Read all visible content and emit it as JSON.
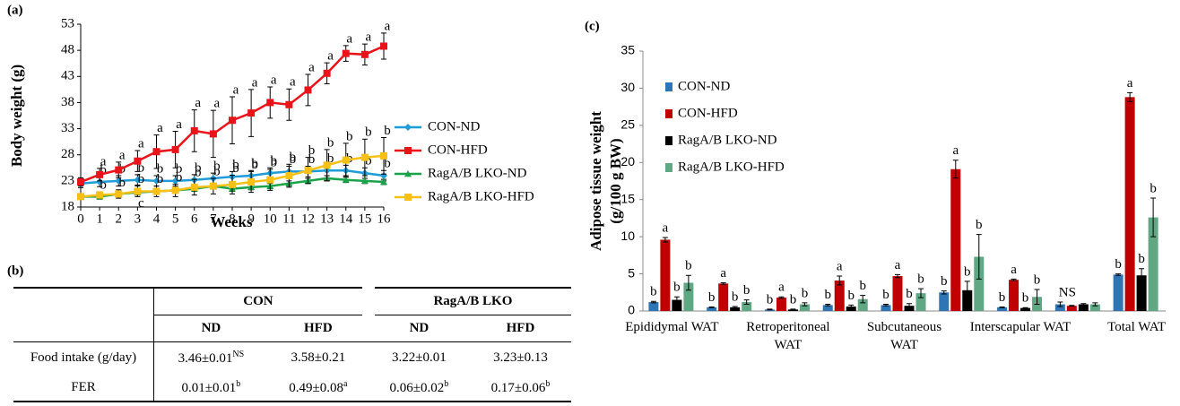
{
  "chart_data": [
    {
      "type": "line",
      "panel": "(a)",
      "ylabel": "Body weight (g)",
      "xlabel": "Weeks",
      "x": [
        0,
        1,
        2,
        3,
        4,
        5,
        6,
        7,
        8,
        9,
        10,
        11,
        12,
        13,
        14,
        15,
        16
      ],
      "xlim": [
        0,
        16
      ],
      "xticks": [
        0,
        1,
        2,
        3,
        4,
        5,
        6,
        7,
        8,
        9,
        10,
        11,
        12,
        13,
        14,
        15,
        16
      ],
      "ylim": [
        18,
        53
      ],
      "yticks": [
        18,
        23,
        28,
        33,
        38,
        43,
        48,
        53
      ],
      "series": [
        {
          "name": "CON-ND",
          "color": "#1f9bd7",
          "marker": "diamond",
          "values": [
            22.5,
            22.8,
            23,
            23.2,
            23,
            23,
            23.2,
            23.5,
            23.8,
            24,
            24.5,
            24.8,
            24.8,
            25,
            25,
            24.5,
            24
          ],
          "errors": [
            0.8,
            0.9,
            1,
            1,
            1,
            1,
            1,
            1,
            1,
            1,
            1,
            1,
            1,
            1,
            1,
            1,
            1
          ],
          "letters": [
            null,
            "b",
            "b",
            "b",
            "b",
            "b",
            "b",
            "b",
            "b",
            "b",
            "b",
            "b",
            "b",
            "b",
            "b",
            "b",
            "b"
          ]
        },
        {
          "name": "CON-HFD",
          "color": "#e8141a",
          "marker": "square",
          "values": [
            22.8,
            24.2,
            25.1,
            26.8,
            28.6,
            29,
            32.6,
            32,
            34.6,
            36,
            38,
            37.6,
            40.4,
            43.6,
            47.4,
            47.2,
            48.8
          ],
          "errors": [
            0.8,
            1.2,
            1.5,
            2,
            3.2,
            3.5,
            4,
            4.5,
            4.5,
            4.5,
            3,
            3,
            3,
            2,
            1.5,
            2,
            2.5
          ],
          "letters": [
            null,
            "a",
            "a",
            "a",
            "a",
            "a",
            "a",
            "a",
            "a",
            "a",
            "a",
            "a",
            "a",
            "a",
            "a",
            "a",
            "a"
          ]
        },
        {
          "name": "RagA/B LKO-ND",
          "color": "#1aa34a",
          "marker": "triangle",
          "values": [
            20,
            20,
            20.5,
            20.8,
            21,
            21.2,
            21.5,
            22,
            21.5,
            21.8,
            22,
            22.5,
            23,
            23.5,
            23.2,
            23,
            22.8
          ],
          "errors": [
            0.5,
            0.5,
            0.5,
            0.5,
            0.5,
            0.5,
            0.5,
            0.5,
            0.5,
            0.5,
            0.5,
            0.5,
            0.5,
            0.5,
            0.5,
            0.5,
            0.5
          ],
          "letters": [
            null,
            null,
            null,
            "c",
            null,
            null,
            null,
            null,
            null,
            null,
            null,
            null,
            null,
            null,
            null,
            null,
            null
          ]
        },
        {
          "name": "RagA/B LKO-HFD",
          "color": "#f7c016",
          "marker": "square",
          "values": [
            20,
            20.3,
            20.5,
            21,
            21,
            21.2,
            21.8,
            22,
            22.3,
            22.8,
            23.2,
            24,
            25,
            26,
            27,
            27.5,
            27.8
          ],
          "errors": [
            0.5,
            0.6,
            0.8,
            1,
            1,
            1.2,
            1.5,
            1.5,
            1.8,
            2,
            2,
            2.2,
            2.5,
            3,
            3.2,
            3.5,
            3.5
          ],
          "letters": [
            null,
            "b",
            "b",
            "b",
            "b",
            "b",
            "b",
            "b",
            "b",
            "b",
            "b",
            "b",
            "b",
            "b",
            "b",
            "b",
            "b"
          ]
        }
      ]
    },
    {
      "type": "bar",
      "panel": "(c)",
      "ylabel": [
        "Adipose tissue weight",
        "(g/100 g BW)"
      ],
      "categories": [
        "Epididymal WAT",
        null,
        "Retroperitoneal WAT",
        null,
        "Subcutaneous WAT",
        null,
        "Interscapular WAT",
        null,
        "Total WAT"
      ],
      "ylim": [
        0,
        35
      ],
      "yticks": [
        0,
        5,
        10,
        15,
        20,
        25,
        30,
        35
      ],
      "series": [
        {
          "name": "CON-ND",
          "color": "#2e75b6",
          "values": [
            1.2,
            0.5,
            0.2,
            0.8,
            0.8,
            2.5,
            0.5,
            0.9,
            4.9
          ],
          "errors": [
            0.1,
            0.05,
            0.05,
            0.1,
            0.1,
            0.2,
            0.05,
            0.3,
            0.1
          ],
          "letters": [
            "b",
            "b",
            "b",
            "b",
            "b",
            "b",
            "b",
            "NS",
            "b"
          ]
        },
        {
          "name": "CON-HFD",
          "color": "#c00000",
          "values": [
            9.6,
            3.7,
            1.8,
            4.1,
            4.7,
            19.1,
            4.2,
            0.7,
            28.8
          ],
          "errors": [
            0.3,
            0.1,
            0.1,
            0.6,
            0.2,
            1.2,
            0.1,
            0.05,
            0.6
          ],
          "letters": [
            "a",
            "a",
            "a",
            "a",
            "a",
            "a",
            "a",
            null,
            "a"
          ]
        },
        {
          "name": "RagA/B LKO-ND",
          "color": "#000000",
          "values": [
            1.5,
            0.5,
            0.2,
            0.6,
            0.7,
            2.8,
            0.4,
            0.9,
            4.8
          ],
          "errors": [
            0.4,
            0.1,
            0.05,
            0.2,
            0.3,
            1.2,
            0.05,
            0.1,
            0.9
          ],
          "letters": [
            "b",
            "b",
            "b",
            "b",
            "b",
            "b",
            "b",
            null,
            "b"
          ]
        },
        {
          "name": "RagA/B LKO-HFD",
          "color": "#5fa883",
          "values": [
            3.8,
            1.2,
            0.9,
            1.6,
            2.4,
            7.3,
            1.9,
            0.9,
            12.6
          ],
          "errors": [
            1,
            0.3,
            0.2,
            0.5,
            0.6,
            3,
            1,
            0.2,
            2.6
          ],
          "letters": [
            "b",
            "b",
            "b",
            "b",
            "b",
            "b",
            "b",
            null,
            "b"
          ]
        }
      ]
    }
  ],
  "table": {
    "panel": "(b)",
    "groups": [
      "CON",
      "RagA/B LKO"
    ],
    "columns": [
      "ND",
      "HFD",
      "ND",
      "HFD"
    ],
    "rows": [
      {
        "label": "Food intake (g/day)",
        "cells": [
          {
            "text": "3.46±0.01",
            "sup": "NS"
          },
          {
            "text": "3.58±0.21"
          },
          {
            "text": "3.22±0.01"
          },
          {
            "text": "3.23±0.13"
          }
        ]
      },
      {
        "label": "FER",
        "cells": [
          {
            "text": "0.01±0.01",
            "sup": "b"
          },
          {
            "text": "0.49±0.08",
            "sup": "a"
          },
          {
            "text": "0.06±0.02",
            "sup": "b"
          },
          {
            "text": "0.17±0.06",
            "sup": "b"
          }
        ]
      }
    ]
  }
}
